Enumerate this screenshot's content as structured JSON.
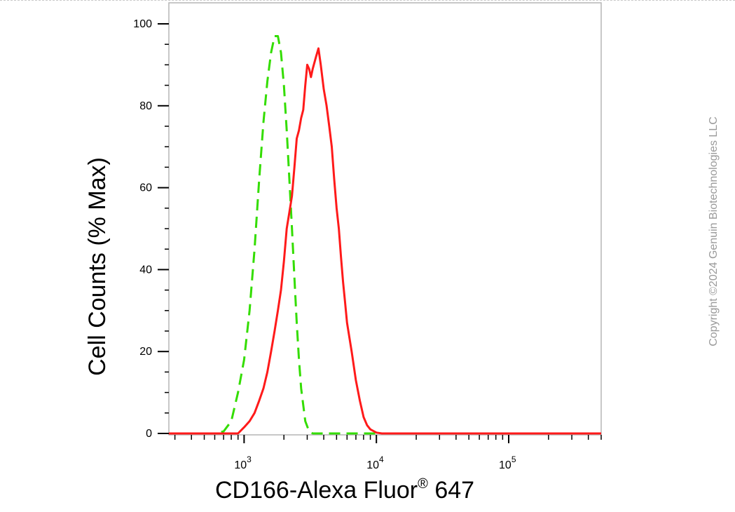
{
  "chart_data": {
    "type": "line",
    "title": "",
    "xlabel": "CD166-Alexa Fluor",
    "xlabel_sup": "®",
    "xlabel_suffix": " 647",
    "ylabel": "Cell Counts (% Max)",
    "x_scale": "log",
    "xlim": [
      270,
      500000
    ],
    "ylim": [
      0,
      100
    ],
    "grid": false,
    "y_ticks": [
      0,
      20,
      40,
      60,
      80,
      100
    ],
    "y_tick_labels": [
      "0",
      "20",
      "40",
      "60",
      "80",
      "100"
    ],
    "x_ticks": [
      1000,
      10000,
      100000
    ],
    "x_tick_labels": [
      {
        "base": "10",
        "exp": "3"
      },
      {
        "base": "10",
        "exp": "4"
      },
      {
        "base": "10",
        "exp": "5"
      }
    ],
    "series": [
      {
        "color": "#33dd00",
        "dash": "dashed",
        "points": [
          [
            270,
            0
          ],
          [
            600,
            0
          ],
          [
            700,
            0.5
          ],
          [
            800,
            3
          ],
          [
            900,
            10
          ],
          [
            1000,
            18
          ],
          [
            1100,
            30
          ],
          [
            1200,
            45
          ],
          [
            1300,
            62
          ],
          [
            1400,
            76
          ],
          [
            1500,
            86
          ],
          [
            1600,
            93
          ],
          [
            1700,
            97
          ],
          [
            1800,
            97
          ],
          [
            1900,
            93
          ],
          [
            2000,
            85
          ],
          [
            2100,
            74
          ],
          [
            2200,
            62
          ],
          [
            2300,
            50
          ],
          [
            2400,
            38
          ],
          [
            2500,
            27
          ],
          [
            2600,
            18
          ],
          [
            2700,
            11
          ],
          [
            2900,
            3
          ],
          [
            3100,
            0.5
          ],
          [
            3300,
            0
          ],
          [
            500000,
            0
          ]
        ]
      },
      {
        "color": "#ff1a1a",
        "dash": "solid",
        "points": [
          [
            270,
            0
          ],
          [
            900,
            0
          ],
          [
            1000,
            1.5
          ],
          [
            1100,
            3
          ],
          [
            1200,
            5
          ],
          [
            1300,
            8
          ],
          [
            1400,
            11
          ],
          [
            1500,
            15
          ],
          [
            1600,
            20
          ],
          [
            1700,
            25
          ],
          [
            1800,
            30
          ],
          [
            1900,
            35
          ],
          [
            2000,
            42
          ],
          [
            2100,
            50
          ],
          [
            2200,
            54
          ],
          [
            2300,
            58
          ],
          [
            2400,
            65
          ],
          [
            2500,
            72
          ],
          [
            2600,
            74
          ],
          [
            2700,
            77
          ],
          [
            2800,
            79
          ],
          [
            2900,
            85
          ],
          [
            3000,
            90
          ],
          [
            3100,
            89
          ],
          [
            3200,
            87
          ],
          [
            3300,
            89
          ],
          [
            3500,
            92
          ],
          [
            3650,
            94
          ],
          [
            3800,
            90
          ],
          [
            4000,
            84
          ],
          [
            4200,
            80
          ],
          [
            4400,
            75
          ],
          [
            4600,
            70
          ],
          [
            4800,
            62
          ],
          [
            5000,
            55
          ],
          [
            5200,
            50
          ],
          [
            5400,
            43
          ],
          [
            5600,
            37
          ],
          [
            5800,
            32
          ],
          [
            6000,
            27
          ],
          [
            6500,
            20
          ],
          [
            7000,
            13
          ],
          [
            7500,
            8
          ],
          [
            8000,
            4
          ],
          [
            8500,
            2
          ],
          [
            9000,
            1
          ],
          [
            10000,
            0.2
          ],
          [
            11000,
            0
          ],
          [
            500000,
            0
          ]
        ]
      }
    ]
  },
  "watermark": "Copyright ©2024 Genuin Biotechnologies LLC"
}
